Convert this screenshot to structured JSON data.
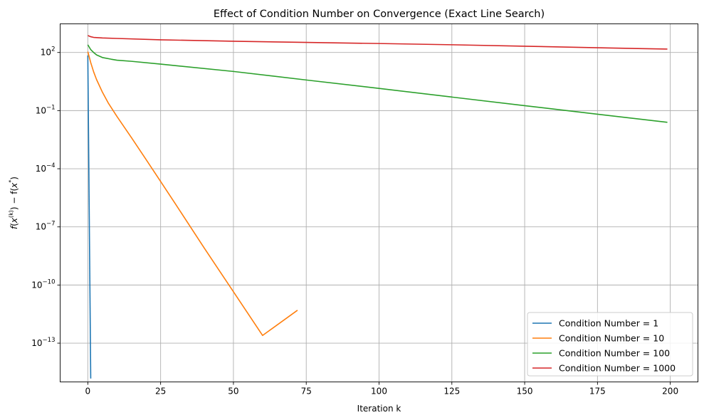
{
  "chart_data": {
    "type": "line",
    "title": "Effect of Condition Number on Convergence (Exact Line Search)",
    "xlabel": "Iteration k",
    "ylabel": "f(x(k)) − f(x*)",
    "ylabel_parts": {
      "f1": "f",
      "x1": "x",
      "sup1": "(k)",
      "mid": ") − f(",
      "x2": "x",
      "sup2": "*",
      "close": ")"
    },
    "x_scale": "linear",
    "y_scale": "log",
    "xlim": [
      -9.5,
      209.5
    ],
    "ylim": [
      1e-15,
      3000.0
    ],
    "grid": true,
    "legend_position": "lower right",
    "x_ticks": [
      0,
      25,
      50,
      75,
      100,
      125,
      150,
      175,
      200
    ],
    "x_tick_labels": [
      "0",
      "25",
      "50",
      "75",
      "100",
      "125",
      "150",
      "175",
      "200"
    ],
    "y_ticks": [
      {
        "value": 100.0,
        "base": "10",
        "exp": "2"
      },
      {
        "value": 0.1,
        "base": "10",
        "exp": "−1"
      },
      {
        "value": 0.0001,
        "base": "10",
        "exp": "−4"
      },
      {
        "value": 1e-07,
        "base": "10",
        "exp": "−7"
      },
      {
        "value": 1e-10,
        "base": "10",
        "exp": "−10"
      },
      {
        "value": 1e-13,
        "base": "10",
        "exp": "−13"
      }
    ],
    "series": [
      {
        "name": "Condition Number = 1",
        "color": "#1f77b4",
        "x": [
          0,
          1
        ],
        "y": [
          70,
          1.5e-15
        ]
      },
      {
        "name": "Condition Number = 10",
        "color": "#ff7f0e",
        "x": [
          0,
          1,
          2,
          3,
          5,
          7,
          10,
          15,
          20,
          25,
          30,
          40,
          50,
          60,
          72
        ],
        "y": [
          110,
          30,
          10,
          4,
          0.9,
          0.25,
          0.05,
          0.004,
          0.0003,
          2.2e-05,
          1.6e-06,
          8e-09,
          4.5e-11,
          2.5e-13,
          5e-12
        ]
      },
      {
        "name": "Condition Number = 100",
        "color": "#2ca02c",
        "x": [
          0,
          1,
          2,
          3,
          5,
          8,
          10,
          15,
          25,
          50,
          75,
          100,
          125,
          150,
          175,
          199
        ],
        "y": [
          250,
          140,
          100,
          75,
          55,
          45,
          40,
          35,
          25,
          10.5,
          3.8,
          1.4,
          0.5,
          0.18,
          0.065,
          0.025
        ]
      },
      {
        "name": "Condition Number = 1000",
        "color": "#d62728",
        "x": [
          0,
          1,
          2,
          5,
          10,
          25,
          50,
          75,
          100,
          125,
          150,
          175,
          199
        ],
        "y": [
          750,
          650,
          600,
          560,
          530,
          450,
          380,
          330,
          290,
          250,
          210,
          175,
          150
        ]
      }
    ]
  }
}
